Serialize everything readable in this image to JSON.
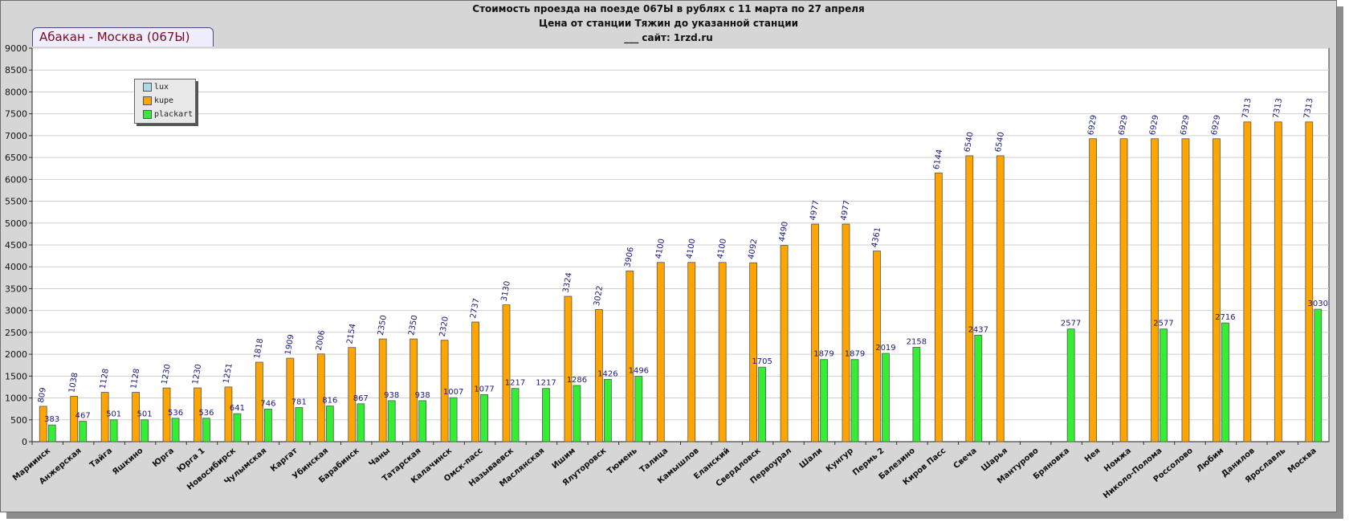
{
  "header": {
    "title_line1": "Стоимость проезда на поезде 067Ы в рублях с 11 марта по 27 апреля",
    "title_line2": "Цена от станции Тяжин до указанной станции",
    "title_line3": "___    сайт: 1rzd.ru"
  },
  "route_label": "Абакан - Москва (067Ы)",
  "colors": {
    "lux": "#add8e6",
    "kupe": "#ffa500",
    "plackart": "#33ee33",
    "plot_bg": "#ffffff",
    "frame_bg": "#d6d6d6",
    "value_label": "#1a1a7a"
  },
  "chart_data": {
    "type": "bar",
    "title": "Стоимость проезда на поезде 067Ы в рублях с 11 марта по 27 апреля",
    "ylim": [
      0,
      9000
    ],
    "yticks": [
      0,
      500,
      1000,
      1500,
      2000,
      2500,
      3000,
      3500,
      4000,
      4500,
      5000,
      5500,
      6000,
      6500,
      7000,
      7500,
      8000,
      8500,
      9000
    ],
    "grid": true,
    "legend_position": "top-left",
    "categories": [
      "Мариинск",
      "Анжерская",
      "Тайга",
      "Яшкино",
      "Юрга",
      "Юрга 1",
      "Новосибирск",
      "Чулымская",
      "Каргат",
      "Убинская",
      "Барабинск",
      "Чаны",
      "Татарская",
      "Калачинск",
      "Омск-пасс",
      "Называевск",
      "Маслянская",
      "Ишим",
      "Ялуторовск",
      "Тюмень",
      "Талица",
      "Камышлов",
      "Еланский",
      "Свердловск",
      "Первоурал",
      "Шали",
      "Кунгур",
      "Пермь 2",
      "Балезино",
      "Киров Пасс",
      "Свеча",
      "Шарья",
      "Мантурово",
      "Бряновка",
      "Нея",
      "Номжа",
      "Николо-Полома",
      "Россолово",
      "Любим",
      "Данилов",
      "Ярославль",
      "Москва"
    ],
    "series": [
      {
        "name": "lux",
        "values": [
          null,
          null,
          null,
          null,
          null,
          null,
          null,
          null,
          null,
          null,
          null,
          null,
          null,
          null,
          null,
          null,
          null,
          null,
          null,
          null,
          null,
          null,
          null,
          null,
          null,
          null,
          null,
          null,
          null,
          null,
          null,
          null,
          null,
          null,
          null,
          null,
          null,
          null,
          null,
          null,
          null,
          null
        ]
      },
      {
        "name": "kupe",
        "values": [
          809,
          1038,
          1128,
          1128,
          1230,
          1230,
          1251,
          1818,
          1909,
          2006,
          2154,
          2350,
          2350,
          2320,
          2737,
          3130,
          null,
          3324,
          3022,
          3906,
          4100,
          4100,
          4100,
          4092,
          4490,
          4977,
          4977,
          4361,
          null,
          6144,
          6540,
          6540,
          null,
          null,
          6929,
          6929,
          6929,
          6929,
          6929,
          7313,
          7313,
          7313
        ]
      },
      {
        "name": "plackart",
        "values": [
          383,
          467,
          501,
          501,
          536,
          536,
          641,
          746,
          781,
          816,
          867,
          938,
          938,
          1007,
          1077,
          1217,
          1217,
          1286,
          1426,
          1496,
          null,
          null,
          null,
          1705,
          null,
          1879,
          1879,
          2019,
          2158,
          null,
          2437,
          null,
          null,
          2577,
          null,
          null,
          2577,
          null,
          2716,
          null,
          null,
          3030
        ]
      }
    ]
  }
}
